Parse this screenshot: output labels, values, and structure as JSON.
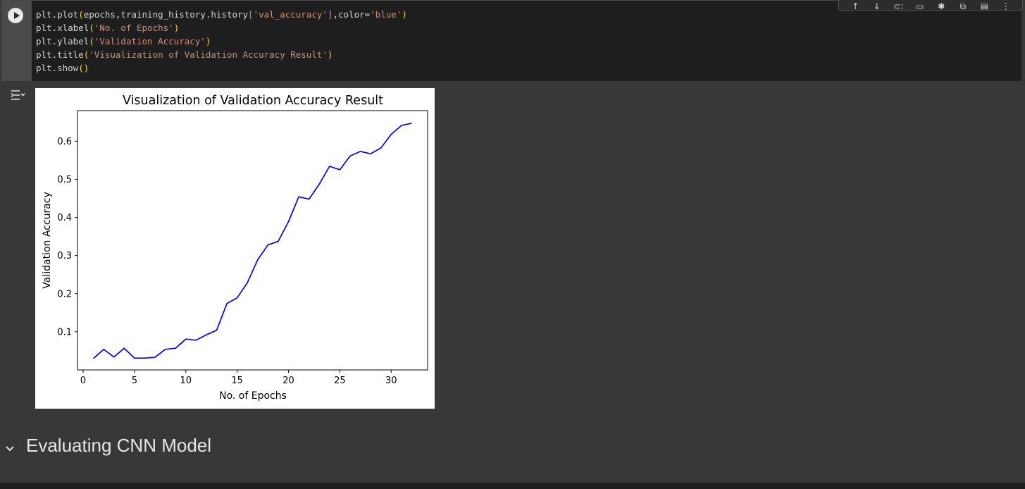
{
  "code_cell": {
    "lines": [
      [
        {
          "t": "plt.plot",
          "c": "d"
        },
        {
          "t": "(",
          "c": "b1"
        },
        {
          "t": "epochs,training_history.history",
          "c": "d"
        },
        {
          "t": "[",
          "c": "b2"
        },
        {
          "t": "'val_accuracy'",
          "c": "str"
        },
        {
          "t": "]",
          "c": "b2"
        },
        {
          "t": ",color=",
          "c": "d"
        },
        {
          "t": "'blue'",
          "c": "str"
        },
        {
          "t": ")",
          "c": "b1"
        }
      ],
      [
        {
          "t": "plt.xlabel",
          "c": "d"
        },
        {
          "t": "(",
          "c": "b1"
        },
        {
          "t": "'No. of Epochs'",
          "c": "str"
        },
        {
          "t": ")",
          "c": "b1"
        }
      ],
      [
        {
          "t": "plt.ylabel",
          "c": "d"
        },
        {
          "t": "(",
          "c": "b1"
        },
        {
          "t": "'Validation Accuracy'",
          "c": "str"
        },
        {
          "t": ")",
          "c": "b1"
        }
      ],
      [
        {
          "t": "plt.title",
          "c": "d"
        },
        {
          "t": "(",
          "c": "b1"
        },
        {
          "t": "'Visualization of Validation Accuracy Result'",
          "c": "str"
        },
        {
          "t": ")",
          "c": "b1"
        }
      ],
      [
        {
          "t": "plt.show",
          "c": "d"
        },
        {
          "t": "()",
          "c": "b1"
        }
      ]
    ]
  },
  "toolbar": {
    "icons": [
      "arrow-up-icon",
      "arrow-down-icon",
      "link-icon",
      "comment-icon",
      "settings-icon",
      "mirror-cell-icon",
      "delete-icon",
      "more-icon"
    ]
  },
  "chart_data": {
    "type": "line",
    "title": "Visualization of Validation Accuracy Result",
    "xlabel": "No. of Epochs",
    "ylabel": "Validation Accuracy",
    "xlim": [
      -0.55,
      33.55
    ],
    "ylim": [
      0.0,
      0.68
    ],
    "xticks": [
      0,
      5,
      10,
      15,
      20,
      25,
      30
    ],
    "yticks": [
      0.1,
      0.2,
      0.3,
      0.4,
      0.5,
      0.6
    ],
    "grid": false,
    "series": [
      {
        "color": "#0000ff",
        "x": [
          1,
          2,
          3,
          4,
          5,
          6,
          7,
          8,
          9,
          10,
          11,
          12,
          13,
          14,
          15,
          16,
          17,
          18,
          19,
          20,
          21,
          22,
          23,
          24,
          25,
          26,
          27,
          28,
          29,
          30,
          31,
          32
        ],
        "y": [
          0.03,
          0.054,
          0.034,
          0.057,
          0.031,
          0.031,
          0.033,
          0.054,
          0.057,
          0.081,
          0.078,
          0.092,
          0.104,
          0.174,
          0.189,
          0.229,
          0.289,
          0.328,
          0.337,
          0.389,
          0.454,
          0.448,
          0.487,
          0.534,
          0.525,
          0.561,
          0.573,
          0.567,
          0.582,
          0.618,
          0.641,
          0.647
        ]
      }
    ]
  },
  "section": {
    "title": "Evaluating CNN Model"
  }
}
